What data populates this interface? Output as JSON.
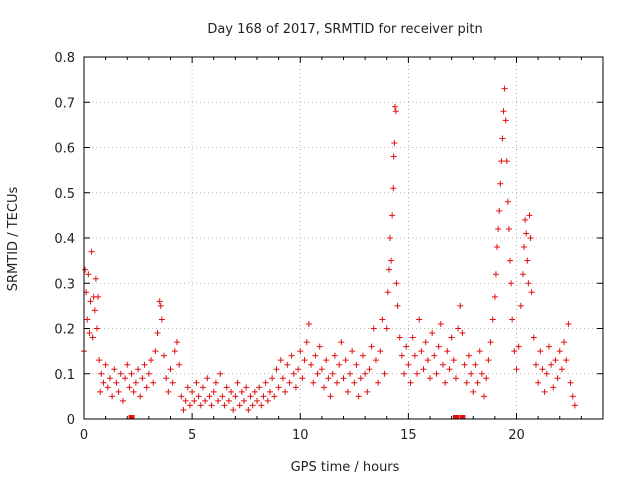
{
  "chart_data": {
    "type": "scatter",
    "title": "Day 168 of 2017, SRMTID for receiver pitn",
    "xlabel": "GPS time / hours",
    "ylabel": "SRMTID / TECUs",
    "xlim": [
      0,
      24
    ],
    "ylim": [
      0,
      0.8
    ],
    "xticks": [
      0,
      5,
      10,
      15,
      20
    ],
    "xtick_labels": [
      "0",
      "5",
      "10",
      "15",
      "20"
    ],
    "yticks": [
      0,
      0.1,
      0.2,
      0.3,
      0.4,
      0.5,
      0.6,
      0.7,
      0.8
    ],
    "ytick_labels": [
      "0",
      "0.1",
      "0.2",
      "0.3",
      "0.4",
      "0.5",
      "0.6",
      "0.7",
      "0.8"
    ],
    "grid": true,
    "marker": "+",
    "color": "#e01010",
    "series": [
      {
        "name": "SRMTID",
        "points": [
          [
            0.0,
            0.15
          ],
          [
            0.05,
            0.33
          ],
          [
            0.1,
            0.28
          ],
          [
            0.15,
            0.22
          ],
          [
            0.2,
            0.32
          ],
          [
            0.25,
            0.19
          ],
          [
            0.3,
            0.26
          ],
          [
            0.35,
            0.37
          ],
          [
            0.4,
            0.18
          ],
          [
            0.45,
            0.27
          ],
          [
            0.5,
            0.24
          ],
          [
            0.55,
            0.31
          ],
          [
            0.6,
            0.2
          ],
          [
            0.65,
            0.27
          ],
          [
            0.7,
            0.13
          ],
          [
            0.75,
            0.06
          ],
          [
            0.8,
            0.1
          ],
          [
            0.9,
            0.08
          ],
          [
            1.0,
            0.12
          ],
          [
            1.1,
            0.07
          ],
          [
            1.2,
            0.09
          ],
          [
            1.3,
            0.05
          ],
          [
            1.4,
            0.11
          ],
          [
            1.5,
            0.08
          ],
          [
            1.6,
            0.06
          ],
          [
            1.7,
            0.1
          ],
          [
            1.8,
            0.04
          ],
          [
            1.9,
            0.09
          ],
          [
            2.0,
            0.12
          ],
          [
            2.1,
            0.07
          ],
          [
            2.2,
            0.1
          ],
          [
            2.3,
            0.06
          ],
          [
            2.4,
            0.08
          ],
          [
            2.5,
            0.11
          ],
          [
            2.6,
            0.05
          ],
          [
            2.7,
            0.09
          ],
          [
            2.8,
            0.12
          ],
          [
            2.9,
            0.07
          ],
          [
            3.0,
            0.1
          ],
          [
            3.1,
            0.13
          ],
          [
            3.2,
            0.08
          ],
          [
            3.3,
            0.15
          ],
          [
            3.4,
            0.19
          ],
          [
            3.5,
            0.26
          ],
          [
            3.55,
            0.25
          ],
          [
            3.6,
            0.22
          ],
          [
            3.7,
            0.14
          ],
          [
            3.8,
            0.09
          ],
          [
            3.9,
            0.06
          ],
          [
            4.0,
            0.11
          ],
          [
            4.1,
            0.08
          ],
          [
            4.2,
            0.15
          ],
          [
            4.3,
            0.17
          ],
          [
            4.4,
            0.12
          ],
          [
            4.5,
            0.05
          ],
          [
            4.6,
            0.02
          ],
          [
            4.7,
            0.04
          ],
          [
            4.8,
            0.07
          ],
          [
            4.9,
            0.03
          ],
          [
            5.0,
            0.06
          ],
          [
            5.1,
            0.04
          ],
          [
            5.2,
            0.08
          ],
          [
            5.3,
            0.05
          ],
          [
            5.4,
            0.03
          ],
          [
            5.5,
            0.07
          ],
          [
            5.6,
            0.04
          ],
          [
            5.7,
            0.09
          ],
          [
            5.8,
            0.05
          ],
          [
            5.9,
            0.03
          ],
          [
            6.0,
            0.06
          ],
          [
            6.1,
            0.08
          ],
          [
            6.2,
            0.04
          ],
          [
            6.3,
            0.1
          ],
          [
            6.4,
            0.05
          ],
          [
            6.5,
            0.03
          ],
          [
            6.6,
            0.07
          ],
          [
            6.7,
            0.04
          ],
          [
            6.8,
            0.06
          ],
          [
            6.9,
            0.02
          ],
          [
            7.0,
            0.05
          ],
          [
            7.1,
            0.08
          ],
          [
            7.2,
            0.03
          ],
          [
            7.3,
            0.06
          ],
          [
            7.4,
            0.04
          ],
          [
            7.5,
            0.07
          ],
          [
            7.6,
            0.02
          ],
          [
            7.7,
            0.05
          ],
          [
            7.8,
            0.03
          ],
          [
            7.9,
            0.06
          ],
          [
            8.0,
            0.04
          ],
          [
            8.1,
            0.07
          ],
          [
            8.2,
            0.03
          ],
          [
            8.3,
            0.05
          ],
          [
            8.4,
            0.08
          ],
          [
            8.5,
            0.04
          ],
          [
            8.6,
            0.06
          ],
          [
            8.7,
            0.09
          ],
          [
            8.8,
            0.05
          ],
          [
            8.9,
            0.11
          ],
          [
            9.0,
            0.07
          ],
          [
            9.1,
            0.13
          ],
          [
            9.2,
            0.09
          ],
          [
            9.3,
            0.06
          ],
          [
            9.4,
            0.12
          ],
          [
            9.5,
            0.08
          ],
          [
            9.6,
            0.14
          ],
          [
            9.7,
            0.1
          ],
          [
            9.8,
            0.07
          ],
          [
            9.9,
            0.11
          ],
          [
            10.0,
            0.15
          ],
          [
            10.1,
            0.09
          ],
          [
            10.2,
            0.13
          ],
          [
            10.3,
            0.17
          ],
          [
            10.4,
            0.21
          ],
          [
            10.5,
            0.12
          ],
          [
            10.6,
            0.08
          ],
          [
            10.7,
            0.14
          ],
          [
            10.8,
            0.1
          ],
          [
            10.9,
            0.16
          ],
          [
            11.0,
            0.11
          ],
          [
            11.1,
            0.07
          ],
          [
            11.2,
            0.13
          ],
          [
            11.3,
            0.09
          ],
          [
            11.4,
            0.05
          ],
          [
            11.5,
            0.1
          ],
          [
            11.6,
            0.14
          ],
          [
            11.7,
            0.08
          ],
          [
            11.8,
            0.12
          ],
          [
            11.9,
            0.17
          ],
          [
            12.0,
            0.09
          ],
          [
            12.1,
            0.13
          ],
          [
            12.2,
            0.06
          ],
          [
            12.3,
            0.1
          ],
          [
            12.4,
            0.15
          ],
          [
            12.5,
            0.08
          ],
          [
            12.6,
            0.12
          ],
          [
            12.7,
            0.05
          ],
          [
            12.8,
            0.09
          ],
          [
            12.9,
            0.14
          ],
          [
            13.0,
            0.1
          ],
          [
            13.1,
            0.06
          ],
          [
            13.2,
            0.11
          ],
          [
            13.3,
            0.16
          ],
          [
            13.4,
            0.2
          ],
          [
            13.5,
            0.13
          ],
          [
            13.6,
            0.08
          ],
          [
            13.7,
            0.15
          ],
          [
            13.8,
            0.22
          ],
          [
            13.9,
            0.1
          ],
          [
            14.0,
            0.2
          ],
          [
            14.05,
            0.28
          ],
          [
            14.1,
            0.33
          ],
          [
            14.15,
            0.4
          ],
          [
            14.2,
            0.35
          ],
          [
            14.25,
            0.45
          ],
          [
            14.3,
            0.51
          ],
          [
            14.32,
            0.58
          ],
          [
            14.35,
            0.61
          ],
          [
            14.38,
            0.69
          ],
          [
            14.42,
            0.68
          ],
          [
            14.45,
            0.3
          ],
          [
            14.5,
            0.25
          ],
          [
            14.6,
            0.18
          ],
          [
            14.7,
            0.14
          ],
          [
            14.8,
            0.1
          ],
          [
            14.9,
            0.16
          ],
          [
            15.0,
            0.12
          ],
          [
            15.1,
            0.08
          ],
          [
            15.2,
            0.18
          ],
          [
            15.3,
            0.14
          ],
          [
            15.4,
            0.1
          ],
          [
            15.5,
            0.22
          ],
          [
            15.6,
            0.15
          ],
          [
            15.7,
            0.11
          ],
          [
            15.8,
            0.17
          ],
          [
            15.9,
            0.13
          ],
          [
            16.0,
            0.09
          ],
          [
            16.1,
            0.19
          ],
          [
            16.2,
            0.14
          ],
          [
            16.3,
            0.1
          ],
          [
            16.4,
            0.16
          ],
          [
            16.5,
            0.21
          ],
          [
            16.6,
            0.12
          ],
          [
            16.7,
            0.08
          ],
          [
            16.8,
            0.15
          ],
          [
            16.9,
            0.11
          ],
          [
            17.0,
            0.18
          ],
          [
            17.1,
            0.13
          ],
          [
            17.2,
            0.09
          ],
          [
            17.3,
            0.2
          ],
          [
            17.4,
            0.25
          ],
          [
            17.5,
            0.19
          ],
          [
            17.6,
            0.12
          ],
          [
            17.7,
            0.08
          ],
          [
            17.8,
            0.14
          ],
          [
            17.9,
            0.1
          ],
          [
            18.0,
            0.06
          ],
          [
            18.1,
            0.12
          ],
          [
            18.2,
            0.08
          ],
          [
            18.3,
            0.15
          ],
          [
            18.4,
            0.1
          ],
          [
            18.5,
            0.05
          ],
          [
            18.6,
            0.09
          ],
          [
            18.7,
            0.13
          ],
          [
            18.8,
            0.17
          ],
          [
            18.9,
            0.22
          ],
          [
            19.0,
            0.27
          ],
          [
            19.05,
            0.32
          ],
          [
            19.1,
            0.38
          ],
          [
            19.15,
            0.42
          ],
          [
            19.2,
            0.46
          ],
          [
            19.25,
            0.52
          ],
          [
            19.3,
            0.57
          ],
          [
            19.35,
            0.62
          ],
          [
            19.4,
            0.68
          ],
          [
            19.45,
            0.73
          ],
          [
            19.5,
            0.66
          ],
          [
            19.55,
            0.57
          ],
          [
            19.6,
            0.48
          ],
          [
            19.65,
            0.42
          ],
          [
            19.7,
            0.35
          ],
          [
            19.75,
            0.3
          ],
          [
            19.8,
            0.22
          ],
          [
            19.9,
            0.15
          ],
          [
            20.0,
            0.11
          ],
          [
            20.1,
            0.16
          ],
          [
            20.2,
            0.25
          ],
          [
            20.3,
            0.32
          ],
          [
            20.35,
            0.38
          ],
          [
            20.4,
            0.44
          ],
          [
            20.45,
            0.41
          ],
          [
            20.5,
            0.35
          ],
          [
            20.55,
            0.3
          ],
          [
            20.6,
            0.45
          ],
          [
            20.65,
            0.4
          ],
          [
            20.7,
            0.28
          ],
          [
            20.8,
            0.18
          ],
          [
            20.9,
            0.12
          ],
          [
            21.0,
            0.08
          ],
          [
            21.1,
            0.15
          ],
          [
            21.2,
            0.11
          ],
          [
            21.3,
            0.06
          ],
          [
            21.4,
            0.1
          ],
          [
            21.5,
            0.16
          ],
          [
            21.6,
            0.12
          ],
          [
            21.7,
            0.07
          ],
          [
            21.8,
            0.13
          ],
          [
            21.9,
            0.09
          ],
          [
            22.0,
            0.15
          ],
          [
            22.1,
            0.11
          ],
          [
            22.2,
            0.17
          ],
          [
            22.3,
            0.13
          ],
          [
            22.4,
            0.21
          ],
          [
            22.5,
            0.08
          ],
          [
            22.6,
            0.05
          ],
          [
            22.7,
            0.03
          ]
        ]
      }
    ],
    "gap_markers_x": [
      2.2,
      17.2,
      17.5
    ]
  }
}
